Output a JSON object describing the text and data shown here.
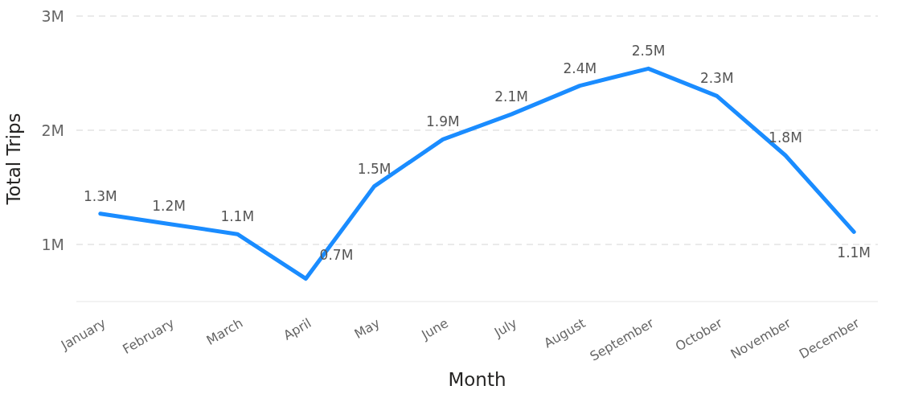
{
  "chart_data": {
    "type": "line",
    "xlabel": "Month",
    "ylabel": "Total Trips",
    "categories": [
      "January",
      "February",
      "March",
      "April",
      "May",
      "June",
      "July",
      "August",
      "September",
      "October",
      "November",
      "December"
    ],
    "series": [
      {
        "color": "#1a8cff",
        "values": [
          1.27,
          1.18,
          1.09,
          0.7,
          1.51,
          1.92,
          2.14,
          2.39,
          2.54,
          2.3,
          1.78,
          1.11
        ],
        "value_labels": [
          "1.3M",
          "1.2M",
          "1.1M",
          "0.7M",
          "1.5M",
          "1.9M",
          "2.1M",
          "2.4M",
          "2.5M",
          "2.3M",
          "1.8M",
          "1.1M"
        ]
      }
    ],
    "yticks": [
      {
        "value": 1,
        "label": "1M"
      },
      {
        "value": 2,
        "label": "2M"
      },
      {
        "value": 3,
        "label": "3M"
      }
    ],
    "ylim": [
      0.5,
      3
    ],
    "grid": "y",
    "marker": "none",
    "line_style": "solid"
  }
}
